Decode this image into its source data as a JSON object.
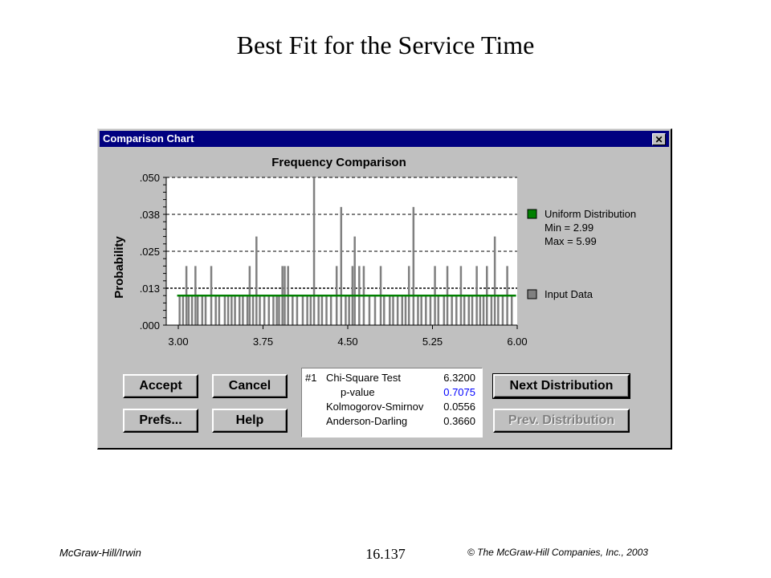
{
  "slide": {
    "title": "Best Fit for the Service Time",
    "footer_left": "McGraw-Hill/Irwin",
    "footer_center": "16.137",
    "footer_right": "© The McGraw-Hill Companies, Inc., 2003"
  },
  "dialog": {
    "title": "Comparison Chart",
    "close_label": "✕"
  },
  "chart_data": {
    "type": "bar",
    "title": "Frequency Comparison",
    "ylabel": "Probability",
    "xlabel": "",
    "xlim": [
      3.0,
      6.0
    ],
    "ylim": [
      0.0,
      0.05
    ],
    "x_ticks": [
      "3.00",
      "3.75",
      "4.50",
      "5.25",
      "6.00"
    ],
    "x_tick_values": [
      3.0,
      3.75,
      4.5,
      5.25,
      6.0
    ],
    "y_ticks": [
      ".050",
      ".038",
      ".025",
      ".013",
      ".000"
    ],
    "y_tick_values": [
      0.05,
      0.0375,
      0.025,
      0.0125,
      0.0
    ],
    "series": [
      {
        "name": "Input Data",
        "color": "#808080",
        "x": [
          3.01,
          3.04,
          3.07,
          3.09,
          3.12,
          3.15,
          3.17,
          3.21,
          3.24,
          3.29,
          3.33,
          3.36,
          3.41,
          3.44,
          3.47,
          3.5,
          3.54,
          3.57,
          3.61,
          3.63,
          3.66,
          3.69,
          3.72,
          3.76,
          3.8,
          3.84,
          3.87,
          3.89,
          3.92,
          3.94,
          3.97,
          4.01,
          4.05,
          4.1,
          4.14,
          4.17,
          4.2,
          4.24,
          4.27,
          4.31,
          4.35,
          4.4,
          4.44,
          4.48,
          4.51,
          4.54,
          4.56,
          4.6,
          4.64,
          4.69,
          4.74,
          4.79,
          4.82,
          4.87,
          4.9,
          4.94,
          4.98,
          5.01,
          5.04,
          5.08,
          5.12,
          5.15,
          5.19,
          5.23,
          5.27,
          5.3,
          5.35,
          5.38,
          5.42,
          5.46,
          5.5,
          5.53,
          5.57,
          5.6,
          5.64,
          5.67,
          5.7,
          5.73,
          5.77,
          5.8,
          5.83,
          5.87,
          5.91,
          5.95
        ],
        "values": [
          0.01,
          0.01,
          0.02,
          0.01,
          0.01,
          0.02,
          0.01,
          0.01,
          0.01,
          0.02,
          0.01,
          0.01,
          0.01,
          0.01,
          0.01,
          0.01,
          0.01,
          0.01,
          0.01,
          0.02,
          0.01,
          0.03,
          0.01,
          0.01,
          0.01,
          0.01,
          0.01,
          0.01,
          0.02,
          0.02,
          0.02,
          0.01,
          0.01,
          0.01,
          0.01,
          0.01,
          0.05,
          0.01,
          0.01,
          0.01,
          0.01,
          0.02,
          0.04,
          0.01,
          0.01,
          0.02,
          0.03,
          0.02,
          0.02,
          0.01,
          0.01,
          0.02,
          0.01,
          0.01,
          0.01,
          0.01,
          0.01,
          0.01,
          0.02,
          0.04,
          0.01,
          0.01,
          0.01,
          0.01,
          0.02,
          0.01,
          0.01,
          0.02,
          0.01,
          0.01,
          0.02,
          0.01,
          0.01,
          0.01,
          0.02,
          0.01,
          0.01,
          0.02,
          0.01,
          0.03,
          0.01,
          0.01,
          0.02,
          0.01
        ]
      },
      {
        "name": "Uniform Distribution",
        "color": "#008000",
        "x": [
          2.99,
          5.99
        ],
        "values": [
          0.01,
          0.01
        ]
      }
    ],
    "legend": [
      {
        "label": "Uniform Distribution",
        "color": "#008000",
        "lines": [
          "Uniform Distribution",
          "Min = 2.99",
          "Max = 5.99"
        ]
      },
      {
        "label": "Input Data",
        "color": "#808080",
        "lines": [
          "Input Data"
        ]
      }
    ],
    "legend_position": "right",
    "grid": "dashed horizontal at y ticks"
  },
  "buttons": {
    "accept": "Accept",
    "cancel": "Cancel",
    "prefs": "Prefs...",
    "help": "Help",
    "next_distribution": "Next Distribution",
    "prev_distribution": "Prev. Distribution"
  },
  "stats": {
    "rank": "#1",
    "rows": [
      {
        "label": "Chi-Square Test",
        "value": "6.3200"
      },
      {
        "label": "p-value",
        "value": "0.7075"
      },
      {
        "label": "Kolmogorov-Smirnov",
        "value": "0.0556"
      },
      {
        "label": "Anderson-Darling",
        "value": "0.3660"
      }
    ]
  }
}
